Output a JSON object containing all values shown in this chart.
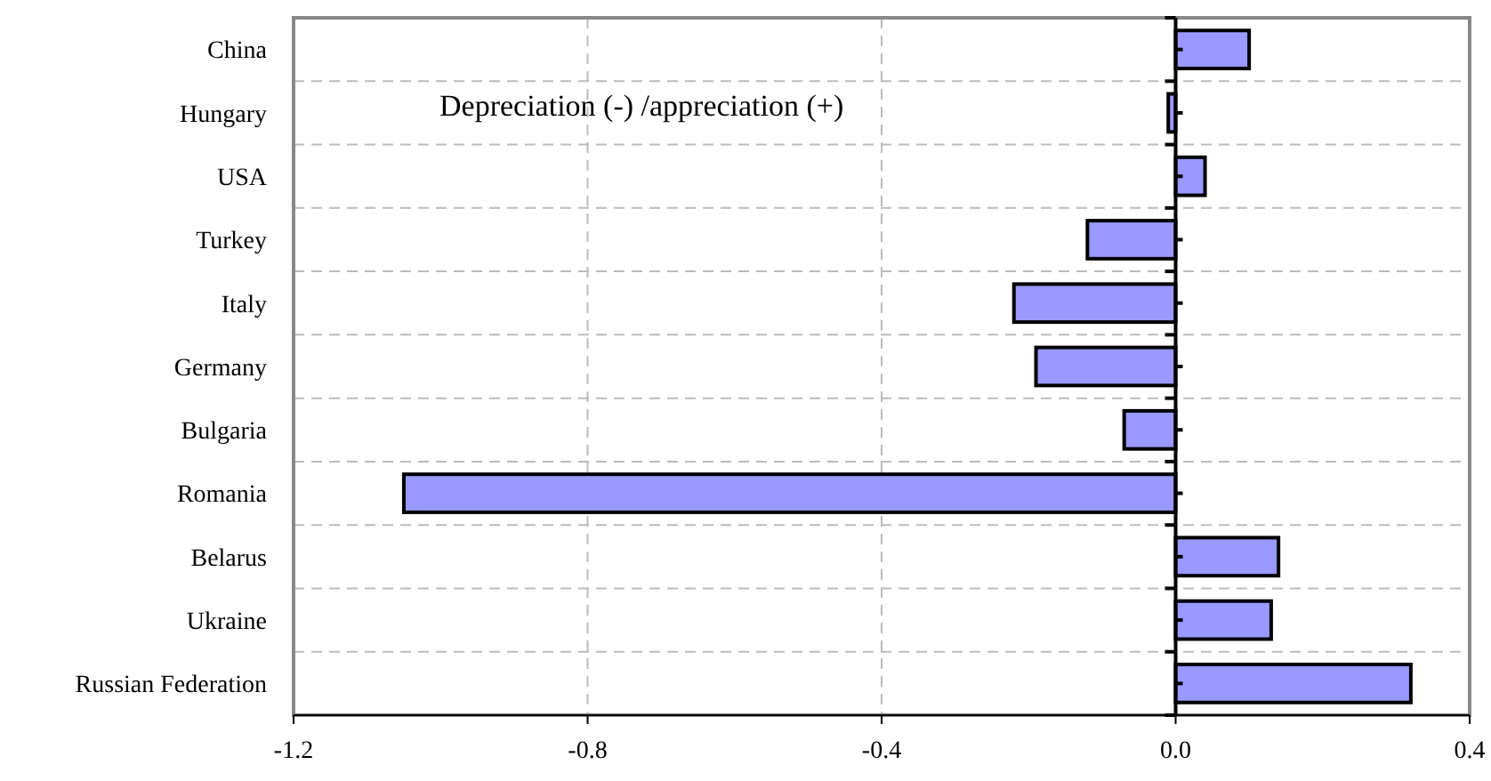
{
  "chart_data": {
    "type": "bar",
    "orientation": "horizontal",
    "categories": [
      "China",
      "Hungary",
      "USA",
      "Turkey",
      "Italy",
      "Germany",
      "Bulgaria",
      "Romania",
      "Belarus",
      "Ukraine",
      "Russian Federation"
    ],
    "values": [
      0.1,
      -0.01,
      0.04,
      -0.12,
      -0.22,
      -0.19,
      -0.07,
      -1.05,
      0.14,
      0.13,
      0.32
    ],
    "color": "#9999ff",
    "xlim": [
      -1.2,
      0.4
    ],
    "xticks": [
      {
        "value": -1.2,
        "label": "-1.2"
      },
      {
        "value": -0.8,
        "label": "-0.8"
      },
      {
        "value": -0.4,
        "label": "-0.4"
      },
      {
        "value": 0,
        "label": "0.0"
      },
      {
        "value": 0.4,
        "label": "0.4"
      }
    ],
    "grid": true,
    "annotations": [
      "Depreciation (-) /appreciation (+)"
    ]
  }
}
